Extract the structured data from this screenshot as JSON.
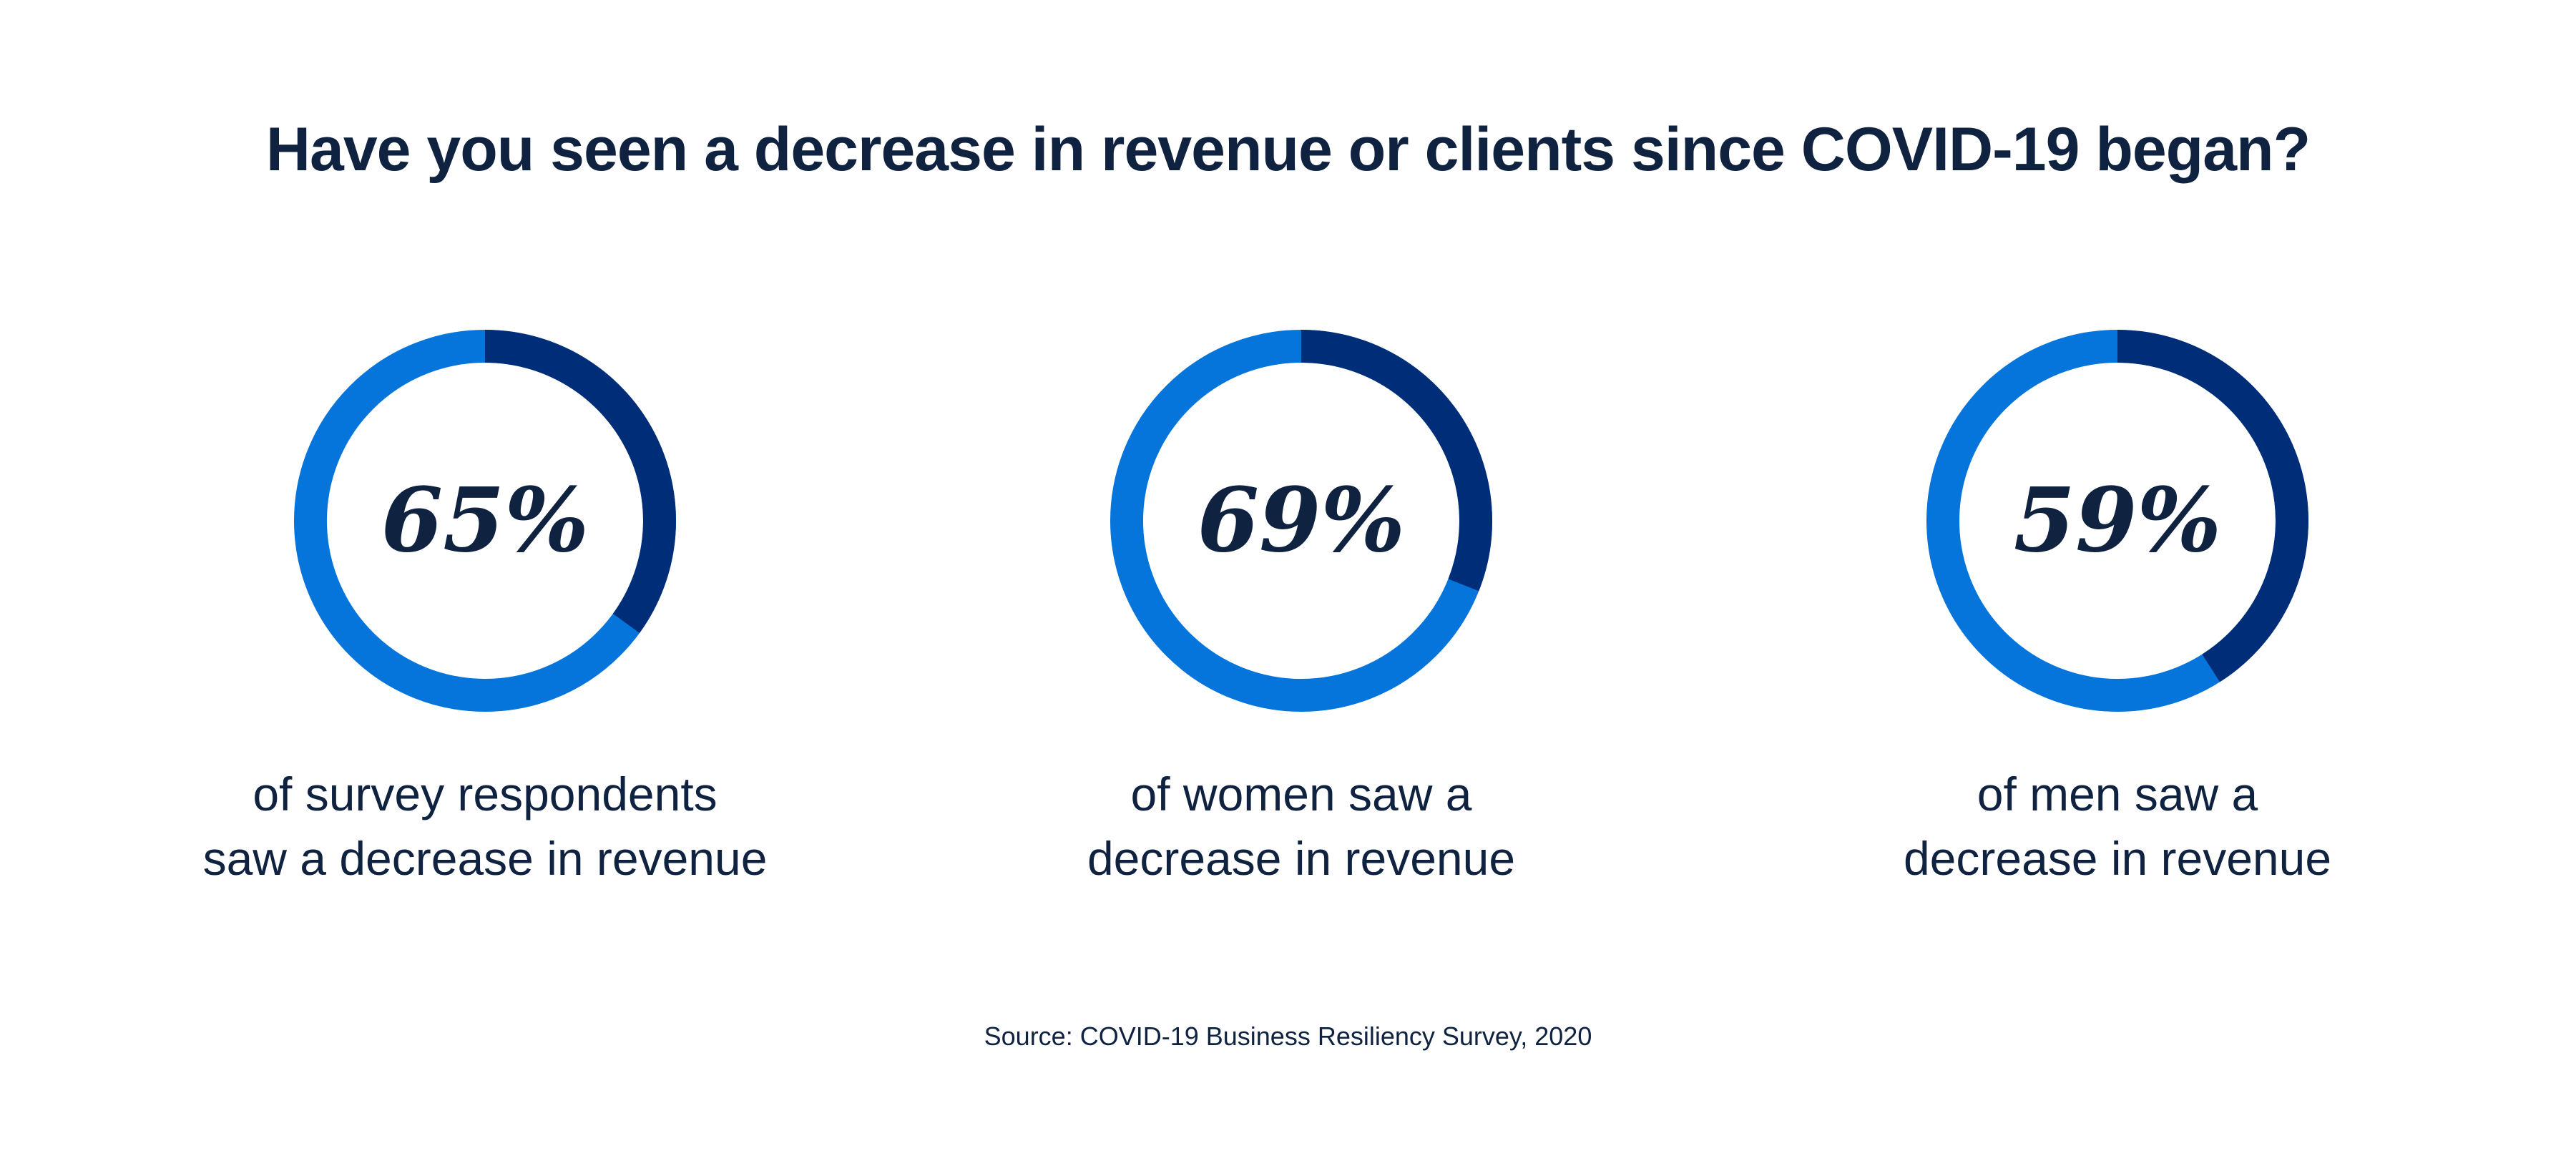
{
  "title": "Have you seen a decrease in revenue or clients since COVID-19 began?",
  "source": "Source: COVID-19 Business Resiliency Survey, 2020",
  "colors": {
    "ring_light": "#0575dc",
    "ring_dark": "#002d78",
    "text": "#0f2240"
  },
  "chart_data": [
    {
      "type": "pie",
      "value_label": "65%",
      "highlight_fraction": 0.35,
      "caption": [
        "of survey respondents",
        "saw a decrease in revenue"
      ]
    },
    {
      "type": "pie",
      "value_label": "69%",
      "highlight_fraction": 0.31,
      "caption": [
        "of women saw a",
        "decrease in revenue"
      ]
    },
    {
      "type": "pie",
      "value_label": "59%",
      "highlight_fraction": 0.41,
      "caption": [
        "of men saw a",
        "decrease in revenue"
      ]
    }
  ]
}
